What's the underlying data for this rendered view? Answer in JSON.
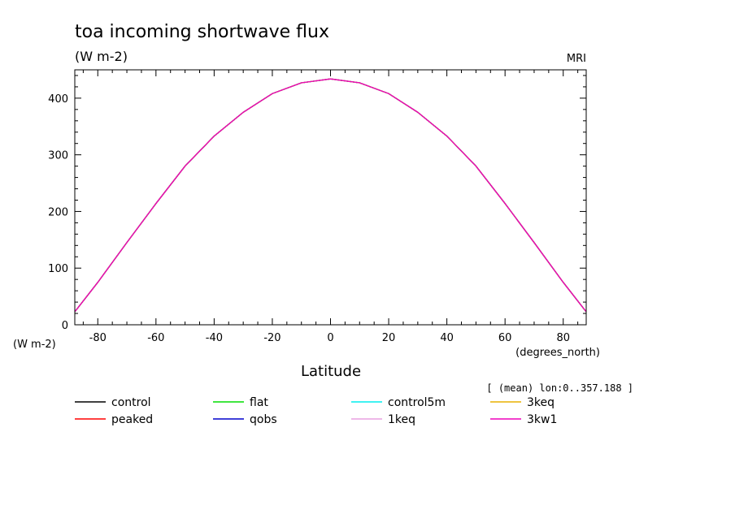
{
  "chart_data": {
    "type": "line",
    "title": "toa incoming shortwave flux",
    "subtitle": "(W m-2)",
    "model_label": "MRI",
    "ylabel_units": "(W m-2)",
    "xlabel": "Latitude",
    "xlabel_units": "(degrees_north)",
    "annotation": "[ (mean) lon:0..357.188 ]",
    "xlim": [
      -87.9,
      87.9
    ],
    "ylim": [
      0,
      450
    ],
    "x_ticks": [
      -80,
      -60,
      -40,
      -20,
      0,
      20,
      40,
      60,
      80
    ],
    "y_ticks": [
      0,
      100,
      200,
      300,
      400
    ],
    "grid": false,
    "legend_position": "bottom",
    "x": [
      -87.9,
      -80,
      -70,
      -60,
      -50,
      -40,
      -30,
      -20,
      -10,
      0,
      10,
      20,
      30,
      40,
      50,
      60,
      70,
      80,
      87.9
    ],
    "series": [
      {
        "name": "control",
        "color": "#000000",
        "values": [
          23,
          75,
          145,
          214,
          280,
          333,
          375,
          408,
          427,
          434,
          427,
          408,
          375,
          333,
          280,
          214,
          145,
          75,
          23
        ]
      },
      {
        "name": "peaked",
        "color": "#ff0000",
        "values": [
          23,
          75,
          145,
          214,
          280,
          333,
          375,
          408,
          427,
          434,
          427,
          408,
          375,
          333,
          280,
          214,
          145,
          75,
          23
        ]
      },
      {
        "name": "flat",
        "color": "#00dd00",
        "values": [
          23,
          75,
          145,
          214,
          280,
          333,
          375,
          408,
          427,
          434,
          427,
          408,
          375,
          333,
          280,
          214,
          145,
          75,
          23
        ]
      },
      {
        "name": "qobs",
        "color": "#0000cc",
        "values": [
          23,
          75,
          145,
          214,
          280,
          333,
          375,
          408,
          427,
          434,
          427,
          408,
          375,
          333,
          280,
          214,
          145,
          75,
          23
        ]
      },
      {
        "name": "control5m",
        "color": "#00eeee",
        "values": [
          23,
          75,
          145,
          214,
          280,
          333,
          375,
          408,
          427,
          434,
          427,
          408,
          375,
          333,
          280,
          214,
          145,
          75,
          23
        ]
      },
      {
        "name": "1keq",
        "color": "#e8a0e0",
        "values": [
          23,
          75,
          145,
          214,
          280,
          333,
          375,
          408,
          427,
          434,
          427,
          408,
          375,
          333,
          280,
          214,
          145,
          75,
          23
        ]
      },
      {
        "name": "3keq",
        "color": "#e8b000",
        "values": [
          23,
          75,
          145,
          214,
          280,
          333,
          375,
          408,
          427,
          434,
          427,
          408,
          375,
          333,
          280,
          214,
          145,
          75,
          23
        ]
      },
      {
        "name": "3kw1",
        "color": "#ee00bb",
        "values": [
          23,
          75,
          145,
          214,
          280,
          333,
          375,
          408,
          427,
          434,
          427,
          408,
          375,
          333,
          280,
          214,
          145,
          75,
          23
        ]
      }
    ]
  }
}
